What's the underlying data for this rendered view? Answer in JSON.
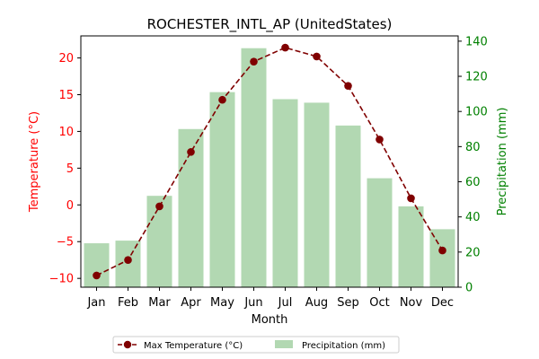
{
  "chart_data": {
    "type": "bar",
    "title": "ROCHESTER_INTL_AP (UnitedStates)",
    "xlabel": "Month",
    "ylabel_left": "Temperature (°C)",
    "ylabel_right": "Precipitation (mm)",
    "categories": [
      "Jan",
      "Feb",
      "Mar",
      "Apr",
      "May",
      "Jun",
      "Jul",
      "Aug",
      "Sep",
      "Oct",
      "Nov",
      "Dec"
    ],
    "series": [
      {
        "name": "Max Temperature (°C)",
        "type": "line",
        "axis": "left",
        "values": [
          -9.6,
          -7.5,
          -0.2,
          7.2,
          14.3,
          19.5,
          21.4,
          20.2,
          16.2,
          8.9,
          0.9,
          -6.2
        ],
        "color": "#800000"
      },
      {
        "name": "Precipitation (mm)",
        "type": "bar",
        "axis": "right",
        "values": [
          25,
          26.5,
          52,
          90,
          111,
          136,
          107,
          105,
          92,
          62,
          46,
          33
        ],
        "color": "#b2d8b2"
      }
    ],
    "ylim_left": [
      -11.2,
      23
    ],
    "yticks_left": [
      -10,
      -5,
      0,
      5,
      10,
      15,
      20
    ],
    "ylim_right": [
      0,
      143
    ],
    "yticks_right": [
      0,
      20,
      40,
      60,
      80,
      100,
      120,
      140
    ],
    "left_axis_color": "#ff0000",
    "right_axis_color": "#008000",
    "legend_position": "bottom-center",
    "grid": false
  }
}
